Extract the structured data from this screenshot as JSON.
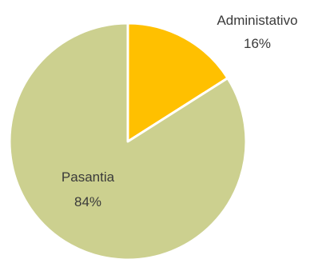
{
  "chart_data": {
    "type": "pie",
    "slices": [
      {
        "label": "Administativo",
        "value": 16,
        "value_label": "16%",
        "color": "#FFC000"
      },
      {
        "label": "Pasantia",
        "value": 84,
        "value_label": "84%",
        "color": "#CCD08F"
      }
    ],
    "start_angle_deg": 0,
    "direction": "clockwise",
    "slice_border_color": "#ffffff",
    "legend": "none"
  }
}
